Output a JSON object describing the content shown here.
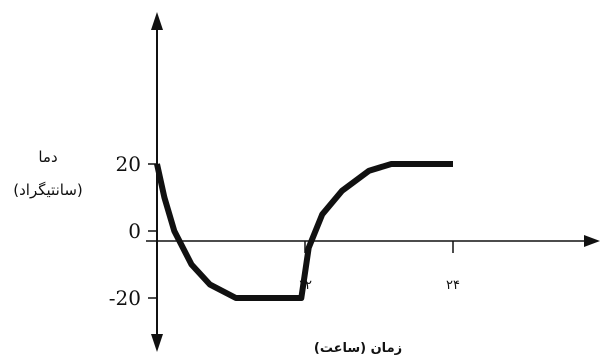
{
  "chart_data": {
    "type": "line",
    "title": "",
    "ylabel_line1": "دما",
    "ylabel_line2": "(سانتیگراد)",
    "xlabel": "زمان (ساعت)",
    "x_ticks": [
      {
        "value": 12,
        "label": "۱۲"
      },
      {
        "value": 24,
        "label": "۲۴"
      }
    ],
    "y_ticks": [
      {
        "value": 20,
        "label": "20"
      },
      {
        "value": 0,
        "label": "0"
      },
      {
        "value": -20,
        "label": "-20"
      }
    ],
    "xlim": [
      0,
      24
    ],
    "ylim": [
      -20,
      20
    ],
    "grid": false,
    "legend": "none",
    "series": [
      {
        "color": "#111111",
        "x": [
          0,
          0.6,
          1.4,
          2.8,
          4.3,
          6.4,
          9,
          11.7,
          12.3,
          13.4,
          15,
          17.2,
          19,
          24
        ],
        "y": [
          20,
          10,
          0,
          -10,
          -16,
          -20,
          -20,
          -20,
          -5,
          5,
          12,
          18,
          20,
          20
        ]
      }
    ]
  }
}
